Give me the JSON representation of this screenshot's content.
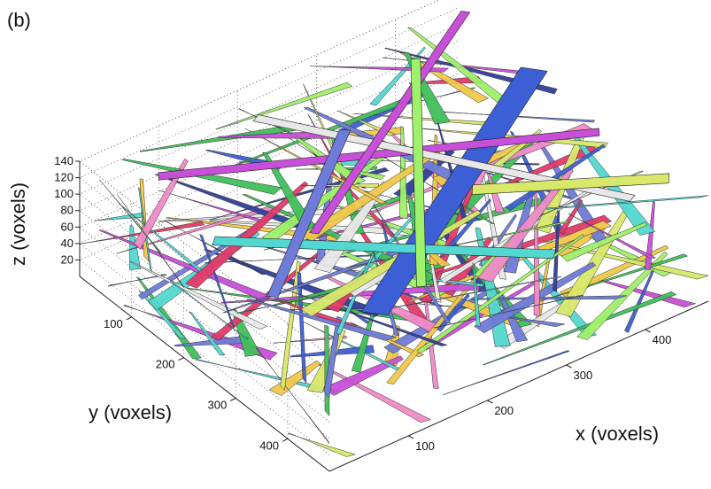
{
  "panel_label": "(b)",
  "chart_data": {
    "type": "3d-surface",
    "description_visible": "3D rendering of segmented fibers/voxel objects in a box",
    "xlabel": "x (voxels)",
    "ylabel": "y (voxels)",
    "zlabel": "z (voxels)",
    "x_ticks": [
      100,
      200,
      300,
      400
    ],
    "y_ticks": [
      100,
      200,
      300,
      400
    ],
    "z_ticks": [
      20,
      40,
      60,
      80,
      100,
      120,
      140
    ],
    "xlim": [
      0,
      480
    ],
    "ylim": [
      0,
      480
    ],
    "zlim": [
      0,
      140
    ],
    "grid": true,
    "palette": [
      "#3d5fd6",
      "#c84fd8",
      "#52d8d0",
      "#d8e86a",
      "#9ff06a",
      "#e8e8e8",
      "#f08ac8",
      "#6f7bd8",
      "#e23a6a",
      "#2f3f9a",
      "#3fbf5a",
      "#f0c84a"
    ]
  }
}
